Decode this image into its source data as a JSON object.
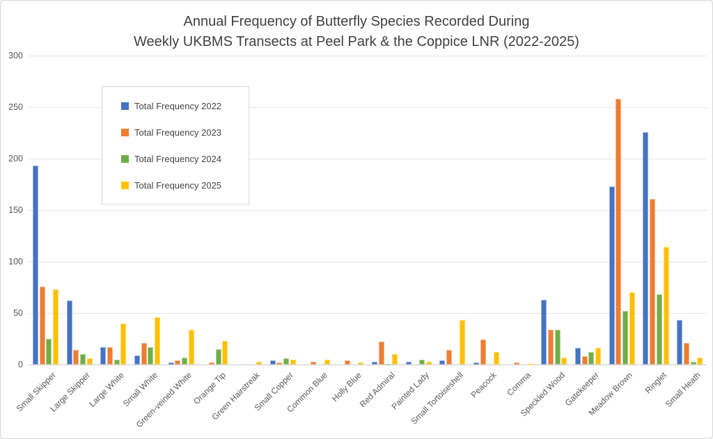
{
  "chart_data": {
    "type": "bar",
    "title": "Annual Frequency of Butterfly Species Recorded During Weekly UKBMS Transects at Peel Park & the Coppice LNR (2022-2025)",
    "title_line1": "Annual Frequency of Butterfly Species Recorded During",
    "title_line2": "Weekly UKBMS Transects at Peel Park & the Coppice LNR (2022-2025)",
    "xlabel": "",
    "ylabel": "",
    "ylim": [
      0,
      300
    ],
    "yticks": [
      0,
      50,
      100,
      150,
      200,
      250,
      300
    ],
    "grid": true,
    "legend_position": "upper-left-inside",
    "categories": [
      "Small Skipper",
      "Large Skipper",
      "Large White",
      "Small White",
      "Green-veined White",
      "Orange Tip",
      "Green Hairstreak",
      "Small Copper",
      "Common Blue",
      "Holly Blue",
      "Red Admiral",
      "Painted Lady",
      "Small Tortoiseshell",
      "Peacock",
      "Comma",
      "Speckled Wood",
      "Gatekeeper",
      "Meadow Brown",
      "Ringlet",
      "Small Heath"
    ],
    "series": [
      {
        "name": "Total Frequency 2022",
        "color": "#4472C4",
        "values": [
          193,
          62,
          17,
          9,
          2,
          0,
          0,
          4,
          0,
          0,
          3,
          3,
          4,
          2,
          0,
          63,
          16,
          173,
          226,
          43
        ]
      },
      {
        "name": "Total Frequency 2023",
        "color": "#ED7D31",
        "values": [
          76,
          14,
          17,
          21,
          4,
          2,
          0,
          2,
          3,
          4,
          22,
          0,
          14,
          24,
          2,
          34,
          8,
          258,
          161,
          21
        ]
      },
      {
        "name": "Total Frequency 2024",
        "color": "#70AD47",
        "values": [
          25,
          10,
          5,
          17,
          7,
          15,
          0,
          6,
          0,
          0,
          1,
          5,
          0,
          0,
          0,
          34,
          12,
          52,
          68,
          3
        ]
      },
      {
        "name": "Total Frequency 2025",
        "color": "#FFC000",
        "values": [
          73,
          6,
          40,
          46,
          34,
          23,
          3,
          5,
          5,
          2,
          10,
          3,
          43,
          12,
          1,
          7,
          16,
          70,
          114,
          7
        ]
      }
    ]
  },
  "colors": {
    "background": "#FFFFFF",
    "gridline": "#E4E4E4",
    "axis_line": "#C9C9C9",
    "tick_text": "#595959",
    "title_text": "#404040",
    "legend_border": "#D9D9D9"
  }
}
